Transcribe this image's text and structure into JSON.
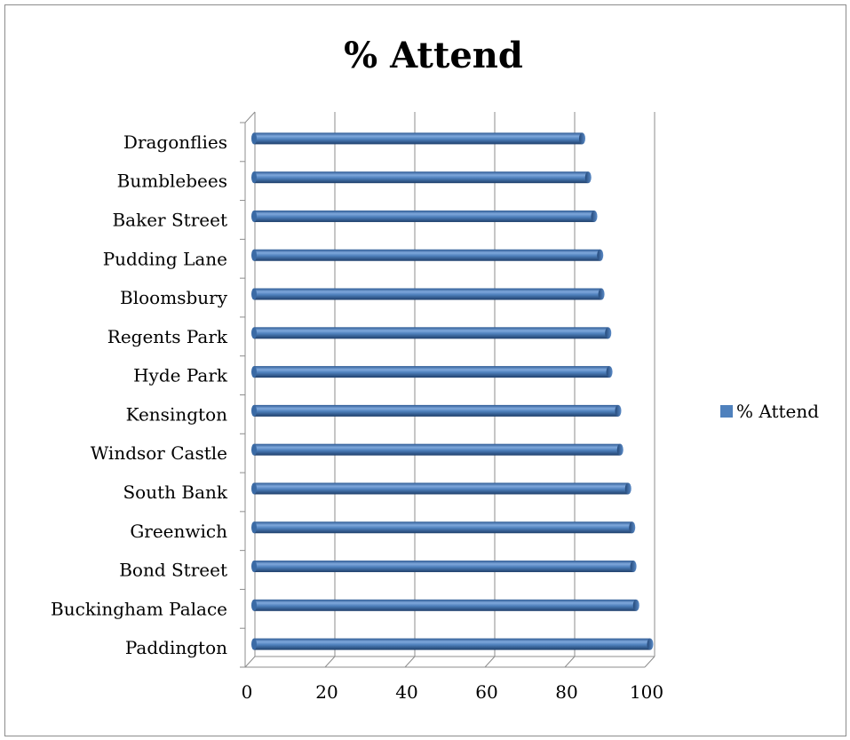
{
  "chart_data": {
    "type": "bar",
    "orientation": "horizontal",
    "style": "3d-cylinder",
    "title": "% Attend",
    "categories": [
      "Paddington",
      "Buckingham Palace",
      "Bond Street",
      "Greenwich",
      "South Bank",
      "Windsor Castle",
      "Kensington",
      "Hyde Park",
      "Regents Park",
      "Bloomsbury",
      "Pudding Lane",
      "Baker Street",
      "Bumblebees",
      "Dragonflies"
    ],
    "series": [
      {
        "name": "% Attend",
        "color": "#4f81bd",
        "values": [
          100,
          96.5,
          95.8,
          95.5,
          94.5,
          92.5,
          92,
          89.8,
          89.5,
          87.8,
          87.5,
          86,
          84.5,
          83
        ]
      }
    ],
    "xlim": [
      0,
      100
    ],
    "xticks": [
      "0",
      "20",
      "40",
      "60",
      "80",
      "100"
    ],
    "grid": true,
    "legend": "right"
  }
}
